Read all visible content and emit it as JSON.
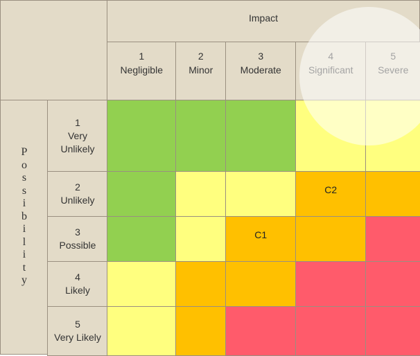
{
  "impact_header": "Impact",
  "possibility_header": "Possibility",
  "columns": [
    {
      "num": "1",
      "label": "Negligible"
    },
    {
      "num": "2",
      "label": "Minor"
    },
    {
      "num": "3",
      "label": "Moderate"
    },
    {
      "num": "4",
      "label": "Significant"
    },
    {
      "num": "5",
      "label": "Severe"
    }
  ],
  "rows": [
    {
      "num": "1",
      "label1": "Very",
      "label2": "Unlikely"
    },
    {
      "num": "2",
      "label1": "Unlikely",
      "label2": ""
    },
    {
      "num": "3",
      "label1": "Possible",
      "label2": ""
    },
    {
      "num": "4",
      "label1": "Likely",
      "label2": ""
    },
    {
      "num": "5",
      "label1": "Very Likely",
      "label2": ""
    }
  ],
  "colors": {
    "green": "#92d050",
    "yellow": "#ffff7f",
    "orange": "#ffc000",
    "red": "#ff5b6b",
    "header": "#e3dbc8"
  },
  "grid": [
    [
      {
        "c": "green",
        "t": ""
      },
      {
        "c": "green",
        "t": ""
      },
      {
        "c": "green",
        "t": ""
      },
      {
        "c": "yellow",
        "t": ""
      },
      {
        "c": "yellow",
        "t": ""
      }
    ],
    [
      {
        "c": "green",
        "t": ""
      },
      {
        "c": "yellow",
        "t": ""
      },
      {
        "c": "yellow",
        "t": ""
      },
      {
        "c": "orange",
        "t": "C2"
      },
      {
        "c": "orange",
        "t": ""
      }
    ],
    [
      {
        "c": "green",
        "t": ""
      },
      {
        "c": "yellow",
        "t": ""
      },
      {
        "c": "orange",
        "t": "C1"
      },
      {
        "c": "orange",
        "t": ""
      },
      {
        "c": "red",
        "t": ""
      }
    ],
    [
      {
        "c": "yellow",
        "t": ""
      },
      {
        "c": "orange",
        "t": ""
      },
      {
        "c": "orange",
        "t": ""
      },
      {
        "c": "red",
        "t": ""
      },
      {
        "c": "red",
        "t": ""
      }
    ],
    [
      {
        "c": "yellow",
        "t": ""
      },
      {
        "c": "orange",
        "t": ""
      },
      {
        "c": "red",
        "t": ""
      },
      {
        "c": "red",
        "t": ""
      },
      {
        "c": "red",
        "t": ""
      }
    ]
  ]
}
